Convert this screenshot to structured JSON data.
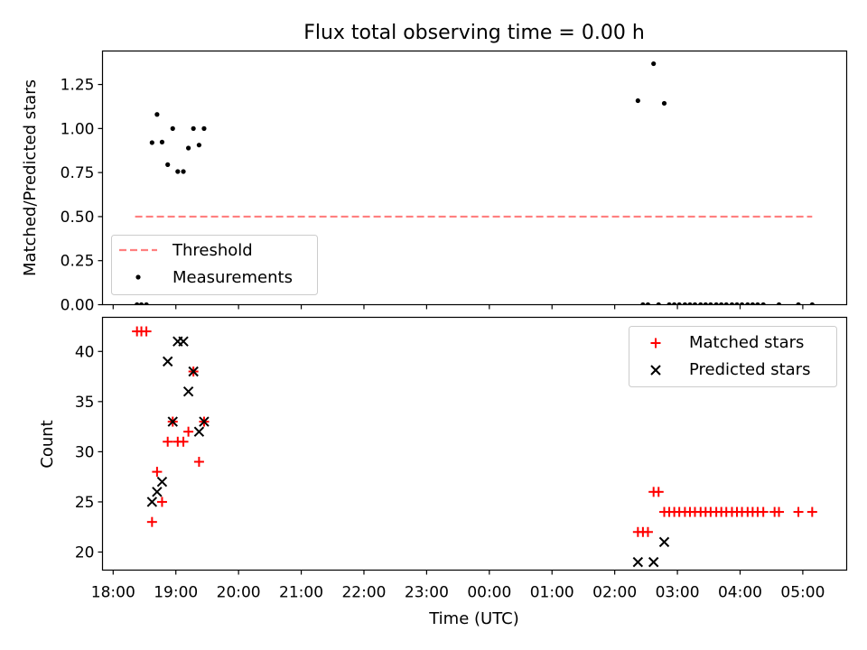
{
  "title": "Flux total observing time = 0.00 h",
  "colors": {
    "threshold": "#ff7f7f",
    "measurement": "#000000",
    "matched": "#ff0000",
    "predicted": "#000000",
    "axes": "#000000",
    "legend_border": "#cccccc"
  },
  "x_axis": {
    "label": "Time (UTC)",
    "ticks": [
      {
        "t": 0,
        "label": "18:00"
      },
      {
        "t": 1,
        "label": "19:00"
      },
      {
        "t": 2,
        "label": "20:00"
      },
      {
        "t": 3,
        "label": "21:00"
      },
      {
        "t": 4,
        "label": "22:00"
      },
      {
        "t": 5,
        "label": "23:00"
      },
      {
        "t": 6,
        "label": "00:00"
      },
      {
        "t": 7,
        "label": "01:00"
      },
      {
        "t": 8,
        "label": "02:00"
      },
      {
        "t": 9,
        "label": "03:00"
      },
      {
        "t": 10,
        "label": "04:00"
      },
      {
        "t": 11,
        "label": "05:00"
      }
    ],
    "range_hours_since_1800": [
      -0.17,
      11.7
    ]
  },
  "chart_data": [
    {
      "type": "scatter",
      "panel": "top",
      "ylabel": "Matched/Predicted stars",
      "ylim": [
        0.0,
        1.44
      ],
      "yticks": [
        {
          "v": 0.0,
          "label": "0.00"
        },
        {
          "v": 0.25,
          "label": "0.25"
        },
        {
          "v": 0.5,
          "label": "0.50"
        },
        {
          "v": 0.75,
          "label": "0.75"
        },
        {
          "v": 1.0,
          "label": "1.00"
        },
        {
          "v": 1.25,
          "label": "1.25"
        }
      ],
      "threshold": {
        "name": "Threshold",
        "value": 0.5,
        "x_range": [
          0.35,
          11.15
        ]
      },
      "series": [
        {
          "name": "Measurements",
          "points": [
            [
              0.38,
              0.0
            ],
            [
              0.45,
              0.0
            ],
            [
              0.53,
              0.0
            ],
            [
              0.62,
              0.92
            ],
            [
              0.7,
              1.08
            ],
            [
              0.78,
              0.923
            ],
            [
              0.87,
              0.795
            ],
            [
              0.95,
              1.0
            ],
            [
              1.03,
              0.756
            ],
            [
              1.12,
              0.756
            ],
            [
              1.2,
              0.889
            ],
            [
              1.28,
              1.0
            ],
            [
              1.37,
              0.906
            ],
            [
              1.45,
              1.0
            ],
            [
              8.37,
              1.158
            ],
            [
              8.62,
              1.368
            ],
            [
              8.79,
              1.143
            ],
            [
              8.45,
              0.0
            ],
            [
              8.53,
              0.0
            ],
            [
              8.7,
              0.0
            ],
            [
              8.87,
              0.0
            ],
            [
              8.95,
              0.0
            ],
            [
              9.03,
              0.0
            ],
            [
              9.12,
              0.0
            ],
            [
              9.2,
              0.0
            ],
            [
              9.28,
              0.0
            ],
            [
              9.37,
              0.0
            ],
            [
              9.45,
              0.0
            ],
            [
              9.53,
              0.0
            ],
            [
              9.62,
              0.0
            ],
            [
              9.7,
              0.0
            ],
            [
              9.78,
              0.0
            ],
            [
              9.87,
              0.0
            ],
            [
              9.95,
              0.0
            ],
            [
              10.03,
              0.0
            ],
            [
              10.12,
              0.0
            ],
            [
              10.2,
              0.0
            ],
            [
              10.28,
              0.0
            ],
            [
              10.37,
              0.0
            ],
            [
              10.62,
              0.0
            ],
            [
              10.93,
              0.0
            ],
            [
              11.15,
              0.0
            ]
          ]
        }
      ]
    },
    {
      "type": "scatter",
      "panel": "bottom",
      "ylabel": "Count",
      "ylim": [
        18.2,
        43.4
      ],
      "yticks": [
        {
          "v": 20,
          "label": "20"
        },
        {
          "v": 25,
          "label": "25"
        },
        {
          "v": 30,
          "label": "30"
        },
        {
          "v": 35,
          "label": "35"
        },
        {
          "v": 40,
          "label": "40"
        }
      ],
      "series": [
        {
          "name": "Matched stars",
          "marker": "+",
          "points": [
            [
              0.38,
              42
            ],
            [
              0.45,
              42
            ],
            [
              0.53,
              42
            ],
            [
              0.62,
              23
            ],
            [
              0.7,
              28
            ],
            [
              0.78,
              25
            ],
            [
              0.87,
              31
            ],
            [
              0.95,
              33
            ],
            [
              1.03,
              31
            ],
            [
              1.12,
              31
            ],
            [
              1.2,
              32
            ],
            [
              1.28,
              38
            ],
            [
              1.37,
              29
            ],
            [
              1.45,
              33
            ],
            [
              8.37,
              22
            ],
            [
              8.45,
              22
            ],
            [
              8.53,
              22
            ],
            [
              8.62,
              26
            ],
            [
              8.7,
              26
            ],
            [
              8.79,
              24
            ],
            [
              8.87,
              24
            ],
            [
              8.95,
              24
            ],
            [
              9.03,
              24
            ],
            [
              9.12,
              24
            ],
            [
              9.2,
              24
            ],
            [
              9.28,
              24
            ],
            [
              9.37,
              24
            ],
            [
              9.45,
              24
            ],
            [
              9.53,
              24
            ],
            [
              9.62,
              24
            ],
            [
              9.7,
              24
            ],
            [
              9.78,
              24
            ],
            [
              9.87,
              24
            ],
            [
              9.95,
              24
            ],
            [
              10.03,
              24
            ],
            [
              10.12,
              24
            ],
            [
              10.2,
              24
            ],
            [
              10.28,
              24
            ],
            [
              10.37,
              24
            ],
            [
              10.55,
              24
            ],
            [
              10.62,
              24
            ],
            [
              10.93,
              24
            ],
            [
              11.15,
              24
            ]
          ]
        },
        {
          "name": "Predicted stars",
          "marker": "x",
          "points": [
            [
              0.62,
              25
            ],
            [
              0.7,
              26
            ],
            [
              0.78,
              27
            ],
            [
              0.87,
              39
            ],
            [
              0.95,
              33
            ],
            [
              1.03,
              41
            ],
            [
              1.12,
              41
            ],
            [
              1.2,
              36
            ],
            [
              1.28,
              38
            ],
            [
              1.37,
              32
            ],
            [
              1.45,
              33
            ],
            [
              8.37,
              19
            ],
            [
              8.62,
              19
            ],
            [
              8.79,
              21
            ]
          ]
        }
      ]
    }
  ]
}
